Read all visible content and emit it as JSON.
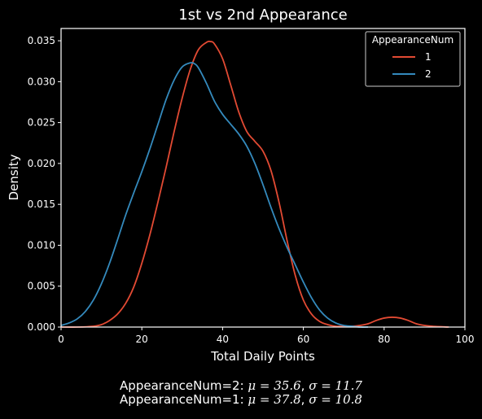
{
  "chart_data": {
    "type": "line",
    "title": "1st vs 2nd Appearance",
    "xlabel": "Total Daily Points",
    "ylabel": "Density",
    "xlim": [
      0,
      100
    ],
    "ylim": [
      0,
      0.0365
    ],
    "x_ticks": [
      0,
      20,
      40,
      60,
      80,
      100
    ],
    "x_tick_labels": [
      "0",
      "20",
      "40",
      "60",
      "80",
      "100"
    ],
    "y_ticks": [
      0,
      0.005,
      0.01,
      0.015,
      0.02,
      0.025,
      0.03,
      0.035
    ],
    "y_tick_labels": [
      "0.000",
      "0.005",
      "0.010",
      "0.015",
      "0.020",
      "0.025",
      "0.030",
      "0.035"
    ],
    "grid": false,
    "background": "#000000",
    "foreground": "#ffffff",
    "legend": {
      "title": "AppearanceNum",
      "placement": "top-right"
    },
    "series": [
      {
        "name": "1",
        "color": "#e24a33",
        "x": [
          0,
          4,
          8,
          10,
          12,
          14,
          16,
          18,
          20,
          22,
          24,
          26,
          28,
          30,
          32,
          34,
          36,
          37,
          38,
          40,
          42,
          44,
          46,
          48,
          50,
          52,
          54,
          56,
          58,
          60,
          62,
          64,
          66,
          68,
          70,
          72,
          74,
          76,
          78,
          80,
          82,
          84,
          86,
          88,
          90,
          92,
          96
        ],
        "y": [
          0.0,
          0.0,
          0.0001,
          0.0003,
          0.0008,
          0.0016,
          0.0029,
          0.0049,
          0.0078,
          0.0113,
          0.0153,
          0.0195,
          0.0239,
          0.028,
          0.0315,
          0.0339,
          0.0348,
          0.0349,
          0.0346,
          0.0328,
          0.0296,
          0.0263,
          0.0239,
          0.0227,
          0.0215,
          0.0191,
          0.0152,
          0.0105,
          0.0063,
          0.0033,
          0.0016,
          0.0007,
          0.0003,
          0.0001,
          0.0001,
          0.0001,
          0.0002,
          0.0004,
          0.0008,
          0.0011,
          0.0012,
          0.0011,
          0.0008,
          0.0004,
          0.0002,
          0.0001,
          0.0
        ]
      },
      {
        "name": "2",
        "color": "#348abd",
        "x": [
          0,
          2,
          4,
          6,
          8,
          10,
          12,
          14,
          16,
          18,
          20,
          22,
          24,
          26,
          28,
          30,
          32,
          33,
          34,
          36,
          38,
          40,
          42,
          44,
          46,
          48,
          50,
          52,
          54,
          56,
          58,
          60,
          62,
          64,
          66,
          68,
          70,
          72,
          74,
          76
        ],
        "y": [
          0.0002,
          0.0005,
          0.001,
          0.0019,
          0.0033,
          0.0053,
          0.0078,
          0.0107,
          0.0137,
          0.0164,
          0.019,
          0.0218,
          0.0248,
          0.0278,
          0.0302,
          0.0318,
          0.0323,
          0.0322,
          0.0317,
          0.0298,
          0.0276,
          0.026,
          0.0248,
          0.0236,
          0.0221,
          0.02,
          0.0174,
          0.0146,
          0.012,
          0.0097,
          0.0076,
          0.0055,
          0.0036,
          0.0021,
          0.0011,
          0.0005,
          0.0002,
          0.0001,
          0.0,
          0.0
        ]
      }
    ],
    "annotations": [
      "AppearanceNum=2: μ = 35.6, σ = 11.7",
      "AppearanceNum=1: μ = 37.8, σ = 10.8"
    ]
  },
  "footer": {
    "line1_prefix": "AppearanceNum=2: ",
    "line1_mu": "μ = 35.6",
    "line1_sep": ", ",
    "line1_sigma": "σ = 11.7",
    "line2_prefix": "AppearanceNum=1: ",
    "line2_mu": "μ = 37.8",
    "line2_sep": ", ",
    "line2_sigma": "σ = 10.8"
  }
}
